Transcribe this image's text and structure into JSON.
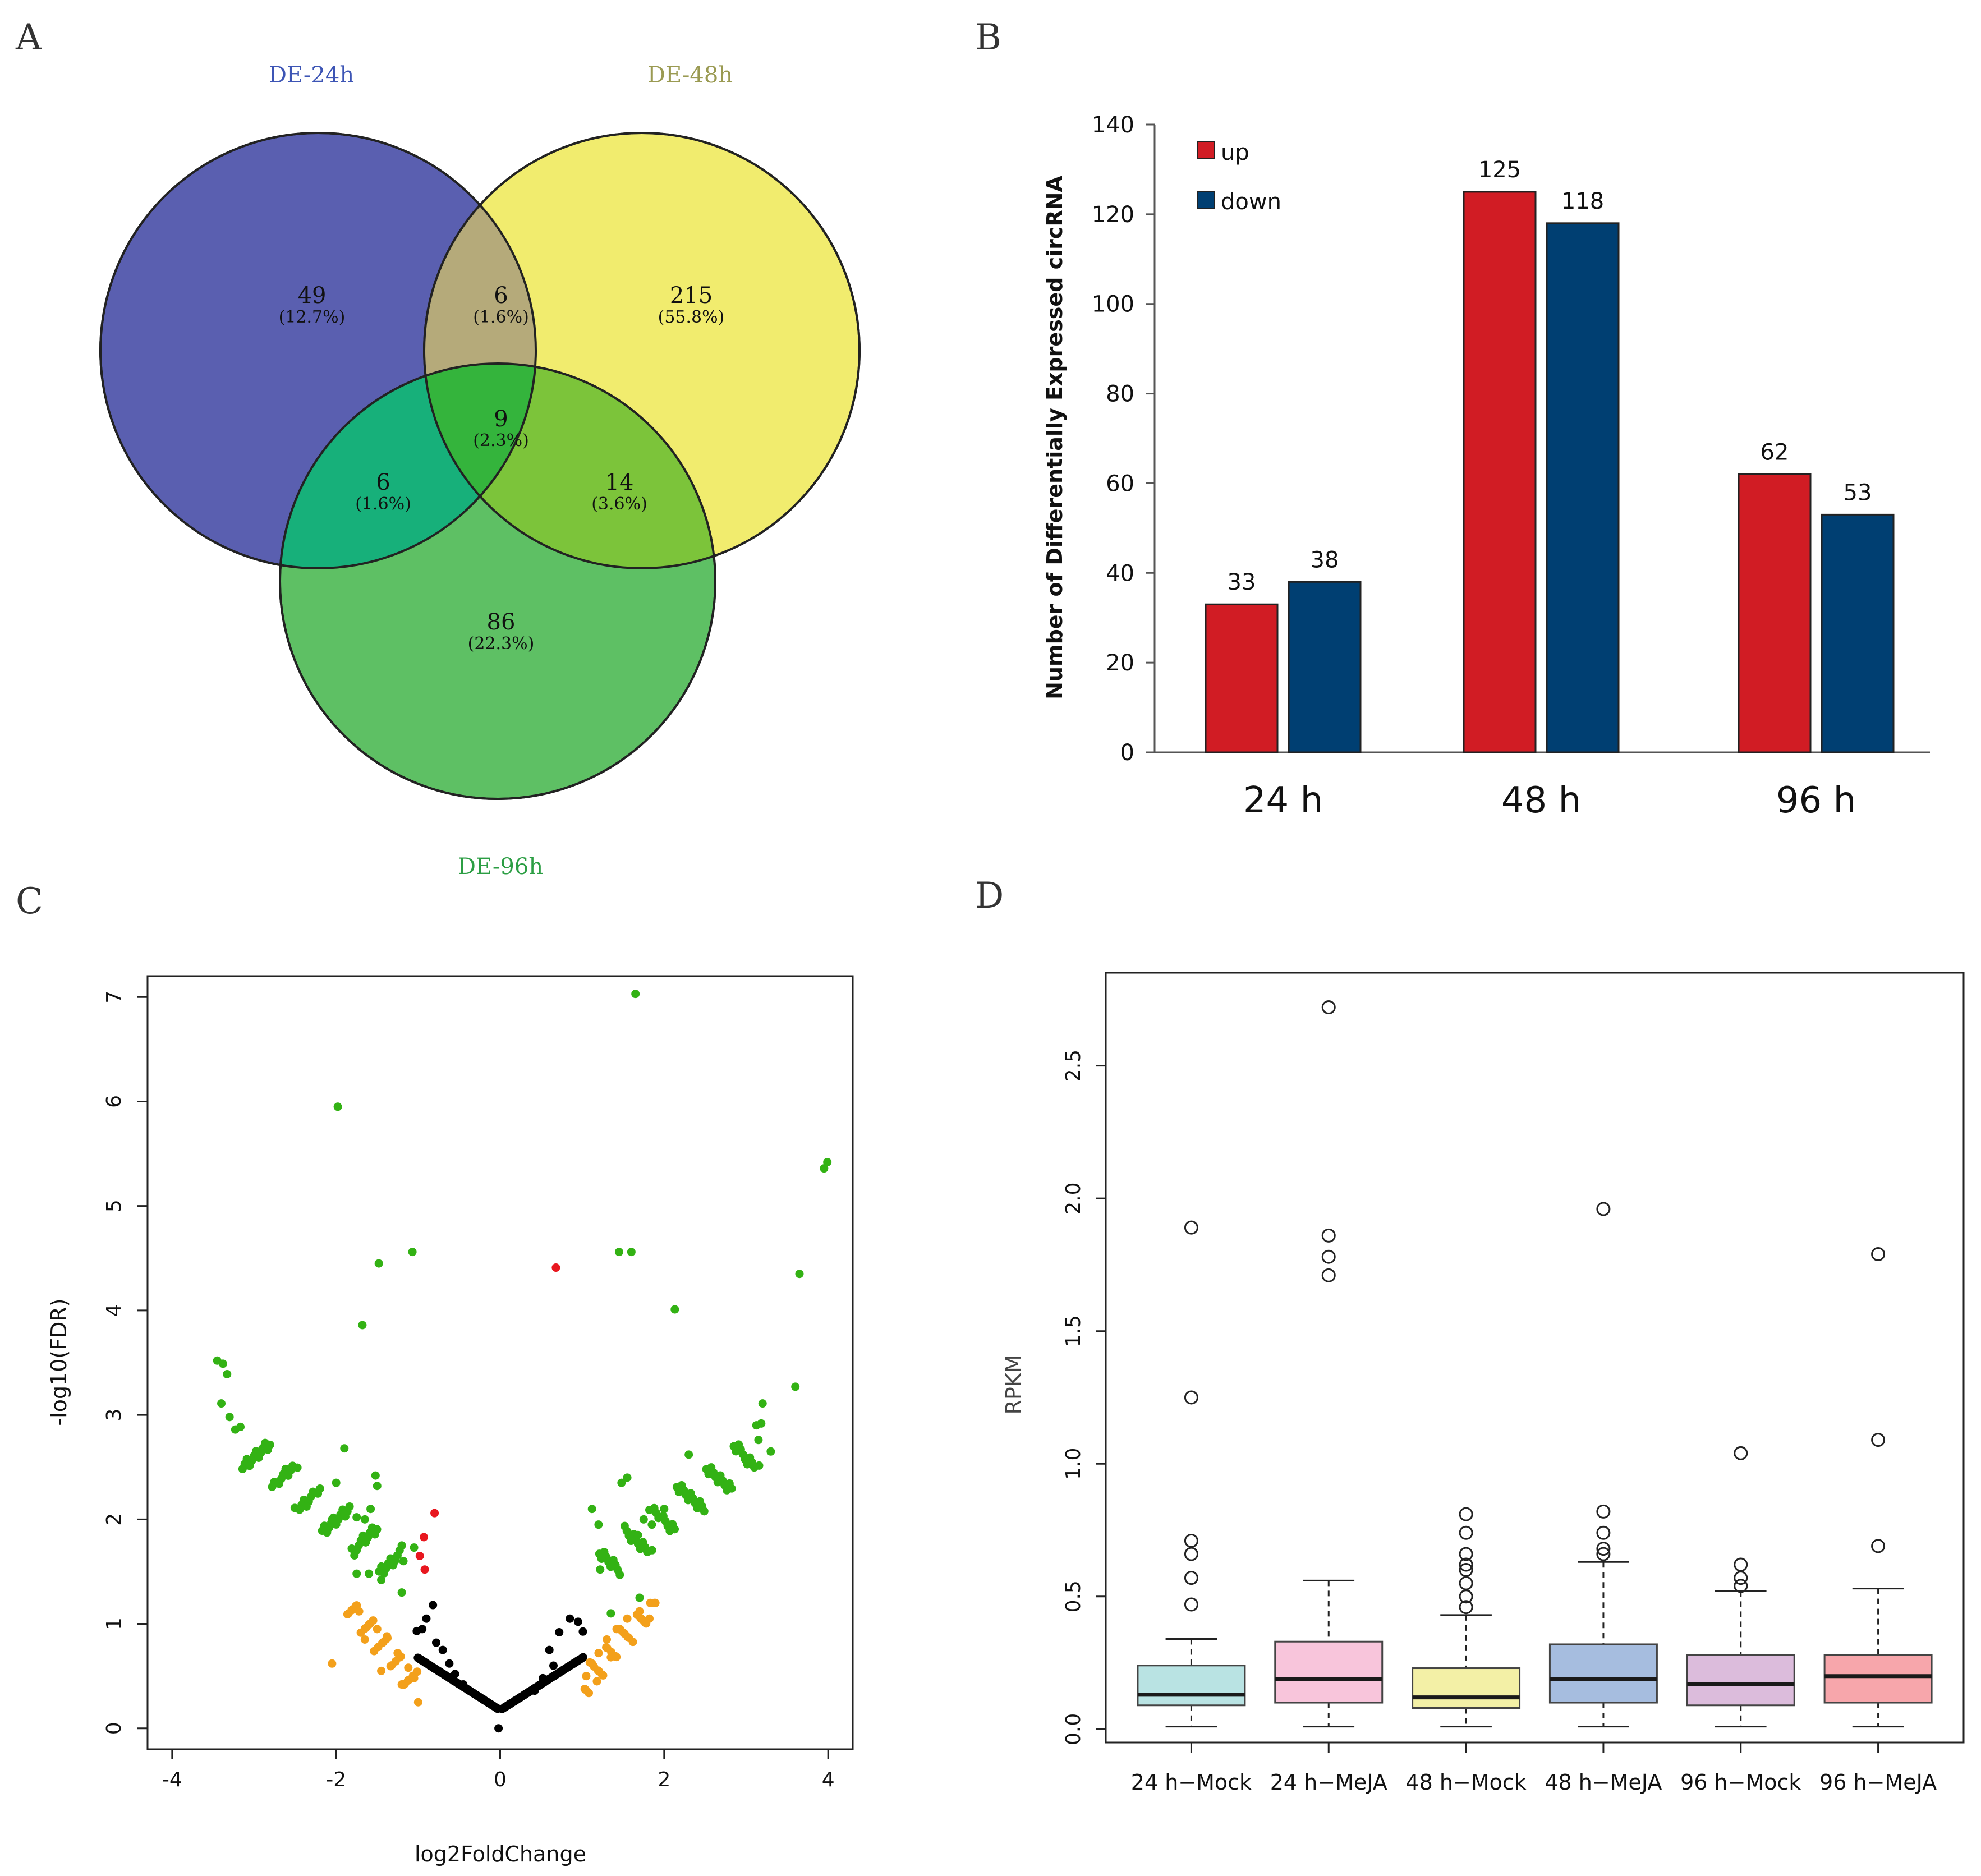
{
  "panels": {
    "A": "A",
    "B": "B",
    "C": "C",
    "D": "D"
  },
  "colors": {
    "venn_24h": "#5a5fb0",
    "venn_48h": "#f1ec6e",
    "venn_96h": "#5ec064",
    "venn_24h_48h": "#b5aa7a",
    "venn_24h_96h": "#17b07a",
    "venn_48h_96h": "#7cc43a",
    "venn_all": "#34b43c",
    "label_24h": "#3d55b5",
    "label_48h": "#9a9a52",
    "label_96h": "#2c9e44",
    "bar_up": "#d11c24",
    "bar_down": "#003f72",
    "volcano_sig": "#33b214",
    "volcano_fc": "#f3a01b",
    "volcano_fdr": "#e8171f",
    "volcano_ns": "#000000"
  },
  "chart_data": [
    {
      "type": "venn",
      "sets": [
        "DE-24h",
        "DE-48h",
        "DE-96h"
      ],
      "regions": {
        "only_24h": {
          "count": "49",
          "pct": "(12.7%)"
        },
        "only_48h": {
          "count": "215",
          "pct": "(55.8%)"
        },
        "only_96h": {
          "count": "86",
          "pct": "(22.3%)"
        },
        "24h_48h": {
          "count": "6",
          "pct": "(1.6%)"
        },
        "24h_96h": {
          "count": "6",
          "pct": "(1.6%)"
        },
        "48h_96h": {
          "count": "14",
          "pct": "(3.6%)"
        },
        "all": {
          "count": "9",
          "pct": "(2.3%)"
        }
      }
    },
    {
      "type": "bar",
      "categories": [
        "24 h",
        "48 h",
        "96 h"
      ],
      "series": [
        {
          "name": "up",
          "values": [
            33,
            125,
            62
          ]
        },
        {
          "name": "down",
          "values": [
            38,
            118,
            53
          ]
        }
      ],
      "ylabel": "Number of Differentially Expressed circRNA",
      "ylim": [
        0,
        140
      ],
      "yticks": [
        0,
        20,
        40,
        60,
        80,
        100,
        120,
        140
      ],
      "legend": "top-left"
    },
    {
      "type": "scatter",
      "xlabel": "log2FoldChange",
      "ylabel": "-log10(FDR)",
      "xlim": [
        -4.3,
        4.3
      ],
      "ylim": [
        -0.2,
        7.2
      ],
      "xticks": [
        -4,
        -2,
        0,
        2,
        4
      ],
      "yticks": [
        0,
        1,
        2,
        3,
        4,
        5,
        6,
        7
      ],
      "green_points": [
        [
          1.65,
          7.03
        ],
        [
          -1.98,
          5.95
        ],
        [
          3.99,
          5.42
        ],
        [
          3.95,
          5.36
        ],
        [
          -1.07,
          4.56
        ],
        [
          1.45,
          4.56
        ],
        [
          1.6,
          4.56
        ],
        [
          -1.48,
          4.45
        ],
        [
          3.65,
          4.35
        ],
        [
          2.13,
          4.01
        ],
        [
          -1.68,
          3.86
        ],
        [
          -3.45,
          3.52
        ],
        [
          -3.38,
          3.49
        ],
        [
          -3.33,
          3.39
        ],
        [
          3.6,
          3.27
        ],
        [
          -3.4,
          3.11
        ],
        [
          -3.3,
          2.98
        ],
        [
          -3.23,
          2.86
        ],
        [
          3.2,
          3.11
        ],
        [
          3.15,
          2.76
        ],
        [
          3.3,
          2.65
        ],
        [
          -1.9,
          2.68
        ],
        [
          2.3,
          2.62
        ],
        [
          -2.0,
          2.35
        ],
        [
          -1.5,
          2.32
        ],
        [
          -1.52,
          2.42
        ],
        [
          -1.58,
          2.1
        ],
        [
          -1.65,
          2.0
        ],
        [
          -1.75,
          2.02
        ],
        [
          -1.9,
          2.05
        ],
        [
          -2.05,
          2.0
        ],
        [
          -1.2,
          1.75
        ],
        [
          -1.05,
          1.73
        ],
        [
          -1.18,
          1.6
        ],
        [
          -1.3,
          1.58
        ],
        [
          -1.45,
          1.42
        ],
        [
          -1.6,
          1.48
        ],
        [
          -1.75,
          1.48
        ],
        [
          1.12,
          2.1
        ],
        [
          1.2,
          1.95
        ],
        [
          1.48,
          2.35
        ],
        [
          1.55,
          2.4
        ],
        [
          1.68,
          1.85
        ],
        [
          1.75,
          2.0
        ],
        [
          1.85,
          1.95
        ],
        [
          2.0,
          2.1
        ],
        [
          1.35,
          1.55
        ],
        [
          1.22,
          1.52
        ],
        [
          1.35,
          1.1
        ],
        [
          1.7,
          1.25
        ]
      ],
      "orange_points": [
        [
          -2.05,
          0.62
        ],
        [
          -1.72,
          1.12
        ],
        [
          -1.5,
          0.95
        ],
        [
          -1.38,
          0.88
        ],
        [
          -1.25,
          0.72
        ],
        [
          -1.12,
          0.58
        ],
        [
          -1.05,
          0.48
        ],
        [
          -1.2,
          0.42
        ],
        [
          -1.45,
          0.55
        ],
        [
          -1.65,
          0.85
        ],
        [
          1.05,
          0.5
        ],
        [
          1.12,
          0.62
        ],
        [
          1.2,
          0.72
        ],
        [
          1.3,
          0.85
        ],
        [
          1.42,
          0.95
        ],
        [
          1.55,
          1.05
        ],
        [
          1.7,
          1.12
        ],
        [
          1.82,
          1.05
        ],
        [
          1.18,
          0.45
        ],
        [
          1.35,
          0.68
        ]
      ],
      "red_points": [
        [
          0.68,
          4.41
        ],
        [
          -0.8,
          2.06
        ],
        [
          -0.93,
          1.83
        ],
        [
          -0.98,
          1.65
        ],
        [
          -0.92,
          1.52
        ]
      ],
      "black_points": [
        [
          -0.82,
          1.18
        ],
        [
          -0.9,
          1.05
        ],
        [
          -0.95,
          0.95
        ],
        [
          -0.78,
          0.82
        ],
        [
          -0.7,
          0.75
        ],
        [
          -0.62,
          0.62
        ],
        [
          -0.55,
          0.52
        ],
        [
          -0.45,
          0.42
        ],
        [
          0.6,
          0.75
        ],
        [
          0.72,
          0.92
        ],
        [
          0.85,
          1.05
        ],
        [
          0.95,
          1.02
        ],
        [
          0.65,
          0.6
        ],
        [
          0.52,
          0.48
        ],
        [
          0.42,
          0.36
        ]
      ]
    },
    {
      "type": "box",
      "ylabel": "RPKM",
      "ylim": [
        -0.05,
        2.85
      ],
      "yticks": [
        0.0,
        0.5,
        1.0,
        1.5,
        2.0,
        2.5
      ],
      "categories": [
        "24 h−Mock",
        "24 h−MeJA",
        "48 h−Mock",
        "48 h−MeJA",
        "96 h−Mock",
        "96 h−MeJA"
      ],
      "boxes": [
        {
          "q1": 0.09,
          "median": 0.13,
          "q3": 0.24,
          "lo": 0.01,
          "hi": 0.34,
          "color": "#b9e3e3",
          "outliers": [
            1.89,
            1.25,
            0.71,
            0.66,
            0.57,
            0.47
          ]
        },
        {
          "q1": 0.1,
          "median": 0.19,
          "q3": 0.33,
          "lo": 0.01,
          "hi": 0.56,
          "color": "#f8c5db",
          "outliers": [
            2.72,
            1.86,
            1.78,
            1.71
          ]
        },
        {
          "q1": 0.08,
          "median": 0.12,
          "q3": 0.23,
          "lo": 0.01,
          "hi": 0.43,
          "color": "#f3f0a6",
          "outliers": [
            0.81,
            0.74,
            0.66,
            0.62,
            0.6,
            0.55,
            0.5,
            0.46
          ]
        },
        {
          "q1": 0.1,
          "median": 0.19,
          "q3": 0.32,
          "lo": 0.01,
          "hi": 0.63,
          "color": "#a6bddf",
          "outliers": [
            1.96,
            0.82,
            0.74,
            0.68,
            0.66
          ]
        },
        {
          "q1": 0.09,
          "median": 0.17,
          "q3": 0.28,
          "lo": 0.01,
          "hi": 0.52,
          "color": "#dcbcdc",
          "outliers": [
            1.04,
            0.62,
            0.57,
            0.54
          ]
        },
        {
          "q1": 0.1,
          "median": 0.2,
          "q3": 0.28,
          "lo": 0.01,
          "hi": 0.53,
          "color": "#f7a6ab",
          "outliers": [
            1.79,
            1.09,
            0.69
          ]
        }
      ]
    }
  ]
}
